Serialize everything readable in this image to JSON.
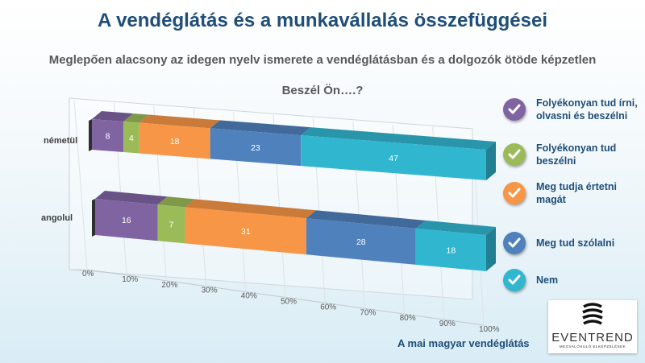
{
  "page": {
    "title": "A vendéglátás és a munkavállalás összefüggései",
    "subtitle": "Meglepően alacsony az idegen nyelv ismerete a vendéglátásban és a dolgozók ötöde képzetlen",
    "footer": "A mai magyar vendéglátás",
    "logo": {
      "name": "EVENTREND",
      "tagline": "MEGVALÓSULÓ ELKÉPZELÉSEK"
    }
  },
  "chart_data": {
    "type": "bar",
    "orientation": "horizontal",
    "stacked": true,
    "percent_stacked": true,
    "style": "3d",
    "title": "Beszél Ön….?",
    "categories": [
      "németül",
      "angolul"
    ],
    "x_ticks": [
      "0%",
      "10%",
      "20%",
      "30%",
      "40%",
      "50%",
      "60%",
      "70%",
      "80%",
      "90%",
      "100%"
    ],
    "xlim": [
      0,
      100
    ],
    "legend_position": "right",
    "series": [
      {
        "name": "Folyékonyan tud írni, olvasni és beszélni",
        "color": "#8064a2",
        "values": [
          8,
          16
        ]
      },
      {
        "name": "Folyékonyan tud beszélni",
        "color": "#9bbb59",
        "values": [
          4,
          7
        ]
      },
      {
        "name": "Meg tudja értetni magát",
        "color": "#f79646",
        "values": [
          18,
          31
        ]
      },
      {
        "name": "Meg tud szólalni",
        "color": "#4f81bd",
        "values": [
          23,
          28
        ]
      },
      {
        "name": "Nem",
        "color": "#31b6d0",
        "values": [
          47,
          18
        ]
      }
    ]
  }
}
